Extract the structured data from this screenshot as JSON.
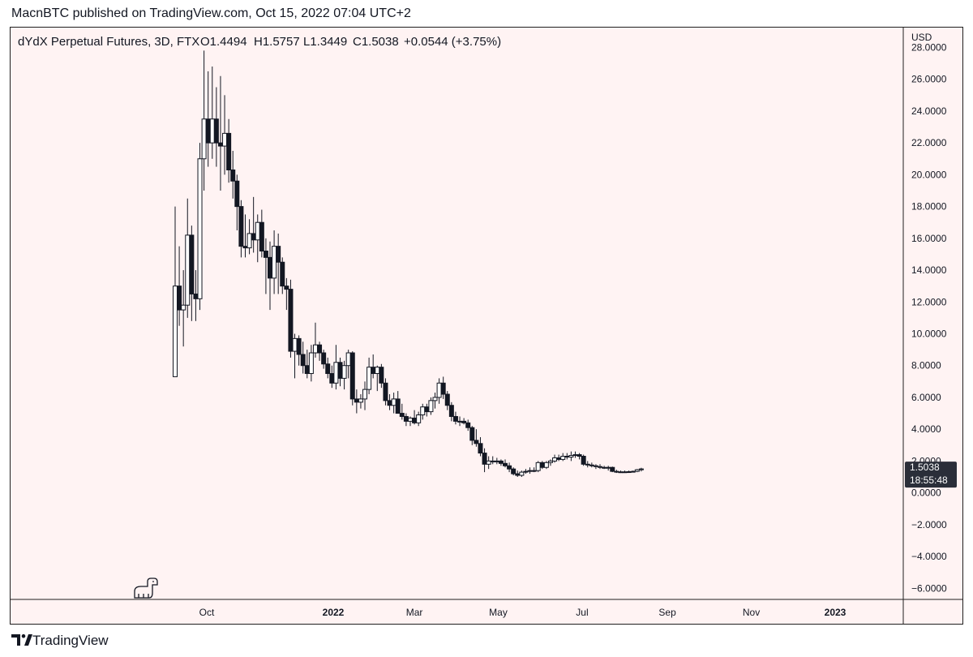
{
  "header": {
    "published": "MacnBTC published on TradingView.com, Oct 15, 2022 07:04 UTC+2"
  },
  "footer": {
    "brand": "TradingView",
    "logo_icon": "tradingview-logo-icon"
  },
  "colors": {
    "background": "#fff3f3",
    "candle_outline": "#131722",
    "up_fill": "#ffffff",
    "down_fill": "#131722",
    "price_tag": "#2a2e39"
  },
  "chart_data": {
    "type": "candlestick",
    "legend": {
      "symbol": "dYdX Perpetual Futures, 3D, FTX",
      "open": "O1.4494",
      "high": "H1.5757",
      "low": "L1.3449",
      "close": "C1.5038",
      "change": "+0.0544 (+3.75%)"
    },
    "y_axis": {
      "unit": "USD",
      "ticks": [
        "28.0000",
        "26.0000",
        "24.0000",
        "22.0000",
        "20.0000",
        "18.0000",
        "16.0000",
        "14.0000",
        "12.0000",
        "10.0000",
        "8.0000",
        "6.0000",
        "4.0000",
        "2.0000",
        "0.0000",
        "−2.0000",
        "−4.0000",
        "−6.0000"
      ],
      "range": [
        -6.7,
        29.3
      ]
    },
    "x_axis": {
      "ticks": [
        {
          "label": "Oct",
          "date": "2021-10-01",
          "bold": false
        },
        {
          "label": "2022",
          "date": "2022-01-01",
          "bold": true
        },
        {
          "label": "Mar",
          "date": "2022-03-01",
          "bold": false
        },
        {
          "label": "May",
          "date": "2022-05-01",
          "bold": false
        },
        {
          "label": "Jul",
          "date": "2022-07-01",
          "bold": false
        },
        {
          "label": "Sep",
          "date": "2022-09-01",
          "bold": false
        },
        {
          "label": "Nov",
          "date": "2022-11-01",
          "bold": false
        },
        {
          "label": "2023",
          "date": "2023-01-01",
          "bold": true
        }
      ]
    },
    "last_price": {
      "price": "1.5038",
      "value": 1.5038,
      "countdown": "18:55:48"
    },
    "candles": [
      {
        "date": "2021-09-08",
        "o": 7.3,
        "h": 18.0,
        "l": 7.3,
        "c": 13.0
      },
      {
        "date": "2021-09-11",
        "o": 13.0,
        "h": 15.5,
        "l": 10.5,
        "c": 11.5
      },
      {
        "date": "2021-09-14",
        "o": 11.5,
        "h": 14.0,
        "l": 9.2,
        "c": 11.8
      },
      {
        "date": "2021-09-17",
        "o": 11.8,
        "h": 18.5,
        "l": 11.0,
        "c": 16.2
      },
      {
        "date": "2021-09-20",
        "o": 16.2,
        "h": 16.8,
        "l": 10.8,
        "c": 12.5
      },
      {
        "date": "2021-09-23",
        "o": 12.5,
        "h": 14.0,
        "l": 10.8,
        "c": 12.2
      },
      {
        "date": "2021-09-26",
        "o": 12.2,
        "h": 22.0,
        "l": 11.5,
        "c": 21.0
      },
      {
        "date": "2021-09-29",
        "o": 21.0,
        "h": 27.8,
        "l": 19.0,
        "c": 23.5
      },
      {
        "date": "2021-10-02",
        "o": 23.5,
        "h": 26.5,
        "l": 20.5,
        "c": 22.0
      },
      {
        "date": "2021-10-05",
        "o": 22.0,
        "h": 26.8,
        "l": 21.0,
        "c": 23.5
      },
      {
        "date": "2021-10-08",
        "o": 23.5,
        "h": 25.5,
        "l": 20.5,
        "c": 22.0
      },
      {
        "date": "2021-10-11",
        "o": 22.0,
        "h": 26.2,
        "l": 19.0,
        "c": 21.8
      },
      {
        "date": "2021-10-14",
        "o": 21.8,
        "h": 25.0,
        "l": 20.0,
        "c": 22.6
      },
      {
        "date": "2021-10-17",
        "o": 22.6,
        "h": 23.5,
        "l": 19.5,
        "c": 20.3
      },
      {
        "date": "2021-10-20",
        "o": 20.3,
        "h": 21.5,
        "l": 18.5,
        "c": 19.6
      },
      {
        "date": "2021-10-23",
        "o": 19.6,
        "h": 20.0,
        "l": 16.5,
        "c": 18.0
      },
      {
        "date": "2021-10-26",
        "o": 18.0,
        "h": 18.4,
        "l": 14.8,
        "c": 15.5
      },
      {
        "date": "2021-10-29",
        "o": 15.5,
        "h": 17.5,
        "l": 14.8,
        "c": 15.4
      },
      {
        "date": "2021-11-01",
        "o": 15.4,
        "h": 17.2,
        "l": 15.0,
        "c": 16.3
      },
      {
        "date": "2021-11-04",
        "o": 16.3,
        "h": 18.6,
        "l": 15.1,
        "c": 15.9
      },
      {
        "date": "2021-11-07",
        "o": 15.9,
        "h": 17.5,
        "l": 14.5,
        "c": 17.0
      },
      {
        "date": "2021-11-10",
        "o": 17.0,
        "h": 17.8,
        "l": 14.8,
        "c": 15.2
      },
      {
        "date": "2021-11-13",
        "o": 15.2,
        "h": 16.0,
        "l": 12.5,
        "c": 14.8
      },
      {
        "date": "2021-11-16",
        "o": 14.8,
        "h": 15.8,
        "l": 11.5,
        "c": 13.5
      },
      {
        "date": "2021-11-19",
        "o": 13.5,
        "h": 16.5,
        "l": 12.5,
        "c": 15.5
      },
      {
        "date": "2021-11-22",
        "o": 15.5,
        "h": 16.3,
        "l": 12.5,
        "c": 14.5
      },
      {
        "date": "2021-11-25",
        "o": 14.5,
        "h": 14.8,
        "l": 12.5,
        "c": 13.0
      },
      {
        "date": "2021-11-28",
        "o": 13.0,
        "h": 13.5,
        "l": 11.5,
        "c": 12.8
      },
      {
        "date": "2021-12-01",
        "o": 12.8,
        "h": 13.4,
        "l": 8.5,
        "c": 8.9
      },
      {
        "date": "2021-12-04",
        "o": 8.9,
        "h": 10.0,
        "l": 7.2,
        "c": 9.7
      },
      {
        "date": "2021-12-07",
        "o": 9.7,
        "h": 9.9,
        "l": 8.0,
        "c": 8.7
      },
      {
        "date": "2021-12-10",
        "o": 8.7,
        "h": 9.5,
        "l": 7.5,
        "c": 8.0
      },
      {
        "date": "2021-12-13",
        "o": 8.0,
        "h": 9.0,
        "l": 7.2,
        "c": 7.5
      },
      {
        "date": "2021-12-16",
        "o": 7.5,
        "h": 9.3,
        "l": 7.0,
        "c": 8.8
      },
      {
        "date": "2021-12-19",
        "o": 8.8,
        "h": 10.7,
        "l": 8.5,
        "c": 9.3
      },
      {
        "date": "2021-12-22",
        "o": 9.3,
        "h": 9.5,
        "l": 8.3,
        "c": 8.8
      },
      {
        "date": "2021-12-25",
        "o": 8.8,
        "h": 9.0,
        "l": 7.8,
        "c": 8.1
      },
      {
        "date": "2021-12-28",
        "o": 8.1,
        "h": 8.5,
        "l": 7.2,
        "c": 7.5
      },
      {
        "date": "2021-12-31",
        "o": 7.5,
        "h": 8.0,
        "l": 6.6,
        "c": 6.9
      },
      {
        "date": "2022-01-03",
        "o": 6.9,
        "h": 9.3,
        "l": 6.5,
        "c": 8.2
      },
      {
        "date": "2022-01-06",
        "o": 8.2,
        "h": 8.5,
        "l": 6.7,
        "c": 7.2
      },
      {
        "date": "2022-01-09",
        "o": 7.2,
        "h": 8.3,
        "l": 6.5,
        "c": 8.0
      },
      {
        "date": "2022-01-12",
        "o": 8.0,
        "h": 9.0,
        "l": 7.2,
        "c": 8.8
      },
      {
        "date": "2022-01-15",
        "o": 8.8,
        "h": 8.9,
        "l": 5.5,
        "c": 5.9
      },
      {
        "date": "2022-01-18",
        "o": 5.9,
        "h": 6.5,
        "l": 5.0,
        "c": 5.7
      },
      {
        "date": "2022-01-21",
        "o": 5.7,
        "h": 6.2,
        "l": 5.3,
        "c": 5.9
      },
      {
        "date": "2022-01-24",
        "o": 5.9,
        "h": 7.0,
        "l": 5.2,
        "c": 6.5
      },
      {
        "date": "2022-01-27",
        "o": 6.5,
        "h": 8.5,
        "l": 6.2,
        "c": 7.9
      },
      {
        "date": "2022-01-30",
        "o": 7.9,
        "h": 8.7,
        "l": 7.2,
        "c": 7.5
      },
      {
        "date": "2022-02-02",
        "o": 7.5,
        "h": 8.0,
        "l": 6.4,
        "c": 7.9
      },
      {
        "date": "2022-02-05",
        "o": 7.9,
        "h": 8.1,
        "l": 6.6,
        "c": 6.9
      },
      {
        "date": "2022-02-08",
        "o": 6.9,
        "h": 7.2,
        "l": 5.5,
        "c": 5.8
      },
      {
        "date": "2022-02-11",
        "o": 5.8,
        "h": 6.2,
        "l": 5.2,
        "c": 5.5
      },
      {
        "date": "2022-02-14",
        "o": 5.5,
        "h": 6.3,
        "l": 5.0,
        "c": 5.9
      },
      {
        "date": "2022-02-17",
        "o": 5.9,
        "h": 6.4,
        "l": 5.3,
        "c": 5.0
      },
      {
        "date": "2022-02-20",
        "o": 5.0,
        "h": 5.6,
        "l": 4.6,
        "c": 4.8
      },
      {
        "date": "2022-02-23",
        "o": 4.8,
        "h": 5.0,
        "l": 4.2,
        "c": 4.5
      },
      {
        "date": "2022-02-26",
        "o": 4.5,
        "h": 4.8,
        "l": 4.2,
        "c": 4.7
      },
      {
        "date": "2022-03-01",
        "o": 4.7,
        "h": 5.2,
        "l": 4.3,
        "c": 4.4
      },
      {
        "date": "2022-03-04",
        "o": 4.4,
        "h": 5.1,
        "l": 4.2,
        "c": 4.9
      },
      {
        "date": "2022-03-07",
        "o": 4.9,
        "h": 5.6,
        "l": 4.6,
        "c": 5.4
      },
      {
        "date": "2022-03-10",
        "o": 5.4,
        "h": 5.6,
        "l": 4.8,
        "c": 5.1
      },
      {
        "date": "2022-03-13",
        "o": 5.1,
        "h": 6.0,
        "l": 4.9,
        "c": 5.8
      },
      {
        "date": "2022-03-16",
        "o": 5.8,
        "h": 6.3,
        "l": 5.3,
        "c": 6.0
      },
      {
        "date": "2022-03-19",
        "o": 6.0,
        "h": 7.2,
        "l": 5.6,
        "c": 6.9
      },
      {
        "date": "2022-03-22",
        "o": 6.9,
        "h": 7.3,
        "l": 5.9,
        "c": 6.2
      },
      {
        "date": "2022-03-25",
        "o": 6.2,
        "h": 6.4,
        "l": 5.2,
        "c": 5.5
      },
      {
        "date": "2022-03-28",
        "o": 5.5,
        "h": 5.7,
        "l": 4.5,
        "c": 4.8
      },
      {
        "date": "2022-03-31",
        "o": 4.8,
        "h": 5.1,
        "l": 4.3,
        "c": 4.5
      },
      {
        "date": "2022-04-03",
        "o": 4.5,
        "h": 4.8,
        "l": 4.2,
        "c": 4.5
      },
      {
        "date": "2022-04-06",
        "o": 4.5,
        "h": 4.7,
        "l": 4.3,
        "c": 4.4
      },
      {
        "date": "2022-04-09",
        "o": 4.4,
        "h": 4.6,
        "l": 3.9,
        "c": 4.1
      },
      {
        "date": "2022-04-12",
        "o": 4.1,
        "h": 4.2,
        "l": 3.0,
        "c": 3.3
      },
      {
        "date": "2022-04-15",
        "o": 3.3,
        "h": 4.0,
        "l": 2.9,
        "c": 3.1
      },
      {
        "date": "2022-04-18",
        "o": 3.1,
        "h": 3.5,
        "l": 2.3,
        "c": 2.5
      },
      {
        "date": "2022-04-21",
        "o": 2.5,
        "h": 2.8,
        "l": 1.3,
        "c": 1.8
      },
      {
        "date": "2022-04-24",
        "o": 1.8,
        "h": 2.3,
        "l": 1.5,
        "c": 2.0
      },
      {
        "date": "2022-04-27",
        "o": 2.0,
        "h": 2.3,
        "l": 1.8,
        "c": 2.0
      },
      {
        "date": "2022-04-30",
        "o": 2.0,
        "h": 2.2,
        "l": 1.8,
        "c": 2.0
      },
      {
        "date": "2022-05-03",
        "o": 2.0,
        "h": 2.1,
        "l": 1.7,
        "c": 1.85
      },
      {
        "date": "2022-05-06",
        "o": 1.85,
        "h": 2.1,
        "l": 1.6,
        "c": 1.7
      },
      {
        "date": "2022-05-09",
        "o": 1.7,
        "h": 1.9,
        "l": 1.3,
        "c": 1.5
      },
      {
        "date": "2022-05-12",
        "o": 1.5,
        "h": 1.6,
        "l": 1.1,
        "c": 1.2
      },
      {
        "date": "2022-05-15",
        "o": 1.2,
        "h": 1.4,
        "l": 1.0,
        "c": 1.1
      },
      {
        "date": "2022-05-18",
        "o": 1.1,
        "h": 1.4,
        "l": 1.0,
        "c": 1.3
      },
      {
        "date": "2022-05-21",
        "o": 1.3,
        "h": 1.5,
        "l": 1.2,
        "c": 1.35
      },
      {
        "date": "2022-05-24",
        "o": 1.35,
        "h": 1.6,
        "l": 1.2,
        "c": 1.4
      },
      {
        "date": "2022-05-27",
        "o": 1.4,
        "h": 1.6,
        "l": 1.3,
        "c": 1.4
      },
      {
        "date": "2022-05-30",
        "o": 1.4,
        "h": 2.0,
        "l": 1.3,
        "c": 1.9
      },
      {
        "date": "2022-06-02",
        "o": 1.9,
        "h": 2.0,
        "l": 1.5,
        "c": 1.6
      },
      {
        "date": "2022-06-05",
        "o": 1.6,
        "h": 2.0,
        "l": 1.5,
        "c": 1.9
      },
      {
        "date": "2022-06-08",
        "o": 1.9,
        "h": 2.1,
        "l": 1.7,
        "c": 2.0
      },
      {
        "date": "2022-06-11",
        "o": 2.0,
        "h": 2.4,
        "l": 1.9,
        "c": 2.2
      },
      {
        "date": "2022-06-14",
        "o": 2.2,
        "h": 2.4,
        "l": 2.0,
        "c": 2.1
      },
      {
        "date": "2022-06-17",
        "o": 2.1,
        "h": 2.5,
        "l": 2.0,
        "c": 2.3
      },
      {
        "date": "2022-06-20",
        "o": 2.3,
        "h": 2.5,
        "l": 2.1,
        "c": 2.25
      },
      {
        "date": "2022-06-23",
        "o": 2.25,
        "h": 2.6,
        "l": 2.0,
        "c": 2.35
      },
      {
        "date": "2022-06-26",
        "o": 2.35,
        "h": 2.6,
        "l": 2.2,
        "c": 2.4
      },
      {
        "date": "2022-06-29",
        "o": 2.4,
        "h": 2.5,
        "l": 2.1,
        "c": 2.3
      },
      {
        "date": "2022-07-02",
        "o": 2.3,
        "h": 2.4,
        "l": 1.7,
        "c": 1.8
      },
      {
        "date": "2022-07-05",
        "o": 1.8,
        "h": 2.0,
        "l": 1.6,
        "c": 1.75
      },
      {
        "date": "2022-07-08",
        "o": 1.75,
        "h": 1.9,
        "l": 1.6,
        "c": 1.7
      },
      {
        "date": "2022-07-11",
        "o": 1.7,
        "h": 1.8,
        "l": 1.5,
        "c": 1.65
      },
      {
        "date": "2022-07-14",
        "o": 1.65,
        "h": 1.8,
        "l": 1.5,
        "c": 1.6
      },
      {
        "date": "2022-07-17",
        "o": 1.6,
        "h": 1.7,
        "l": 1.5,
        "c": 1.55
      },
      {
        "date": "2022-07-20",
        "o": 1.55,
        "h": 1.7,
        "l": 1.4,
        "c": 1.6
      },
      {
        "date": "2022-07-23",
        "o": 1.6,
        "h": 1.65,
        "l": 1.3,
        "c": 1.35
      },
      {
        "date": "2022-07-26",
        "o": 1.35,
        "h": 1.45,
        "l": 1.25,
        "c": 1.3
      },
      {
        "date": "2022-07-29",
        "o": 1.3,
        "h": 1.4,
        "l": 1.25,
        "c": 1.32
      },
      {
        "date": "2022-08-01",
        "o": 1.32,
        "h": 1.4,
        "l": 1.25,
        "c": 1.3
      },
      {
        "date": "2022-08-04",
        "o": 1.3,
        "h": 1.4,
        "l": 1.25,
        "c": 1.33
      },
      {
        "date": "2022-08-07",
        "o": 1.33,
        "h": 1.4,
        "l": 1.3,
        "c": 1.35
      },
      {
        "date": "2022-08-10",
        "o": 1.35,
        "h": 1.5,
        "l": 1.3,
        "c": 1.45
      },
      {
        "date": "2022-08-13",
        "o": 1.4494,
        "h": 1.5757,
        "l": 1.3449,
        "c": 1.5038
      }
    ]
  }
}
